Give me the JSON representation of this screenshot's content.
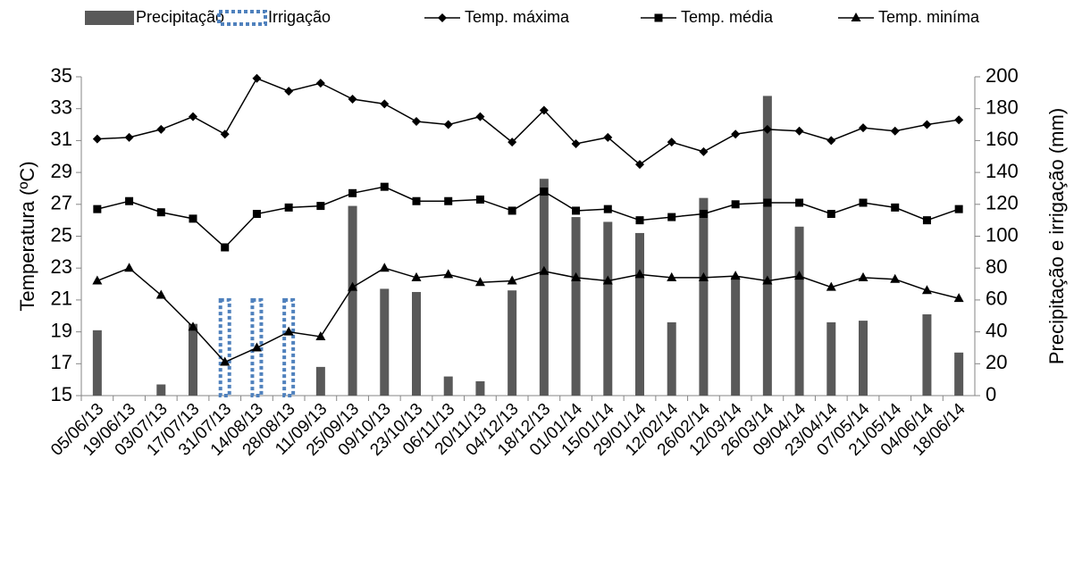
{
  "chart_data": {
    "type": "bar-line",
    "ylabel": "Temperatura (ºC)",
    "y2label": "Precipitação e irrigação (mm)",
    "categories": [
      "05/06/13",
      "19/06/13",
      "03/07/13",
      "17/07/13",
      "31/07/13",
      "14/08/13",
      "28/08/13",
      "11/09/13",
      "25/09/13",
      "09/10/13",
      "23/10/13",
      "06/11/13",
      "20/11/13",
      "04/12/13",
      "18/12/13",
      "01/01/14",
      "15/01/14",
      "29/01/14",
      "12/02/14",
      "26/02/14",
      "12/03/14",
      "26/03/14",
      "09/04/14",
      "23/04/14",
      "07/05/14",
      "21/05/14",
      "04/06/14",
      "18/06/14"
    ],
    "ylim": [
      15,
      35
    ],
    "yticks": [
      15,
      17,
      19,
      21,
      23,
      25,
      27,
      29,
      31,
      33,
      35
    ],
    "y2lim": [
      0,
      200
    ],
    "y2ticks": [
      0,
      20,
      40,
      60,
      80,
      100,
      120,
      140,
      160,
      180,
      200
    ],
    "series": [
      {
        "name": "Precipitação",
        "kind": "bar",
        "axis": "y2",
        "color": "#595959",
        "values": [
          41,
          0,
          7,
          45,
          0,
          0,
          0,
          18,
          119,
          67,
          65,
          12,
          9,
          66,
          136,
          112,
          109,
          102,
          46,
          124,
          75,
          188,
          106,
          46,
          47,
          0,
          51,
          27
        ]
      },
      {
        "name": "Irrigação",
        "kind": "bar",
        "axis": "y2",
        "color": "#4f81bd",
        "values": [
          null,
          null,
          null,
          null,
          60,
          60,
          60,
          null,
          null,
          null,
          null,
          null,
          null,
          null,
          null,
          null,
          null,
          null,
          null,
          null,
          null,
          null,
          null,
          null,
          null,
          null,
          null,
          null
        ]
      },
      {
        "name": "Temp. máxima",
        "kind": "line",
        "marker": "diamond",
        "color": "#000000",
        "values": [
          31.1,
          31.2,
          31.7,
          32.5,
          31.4,
          34.9,
          34.1,
          34.6,
          33.6,
          33.3,
          32.2,
          32.0,
          32.5,
          30.9,
          32.9,
          30.8,
          31.2,
          29.5,
          30.9,
          30.3,
          31.4,
          31.7,
          31.6,
          31.0,
          31.8,
          31.6,
          32.0,
          32.3
        ]
      },
      {
        "name": "Temp. média",
        "kind": "line",
        "marker": "square",
        "color": "#000000",
        "values": [
          26.7,
          27.2,
          26.5,
          26.1,
          24.3,
          26.4,
          26.8,
          26.9,
          27.7,
          28.1,
          27.2,
          27.2,
          27.3,
          26.6,
          27.8,
          26.6,
          26.7,
          26.0,
          26.2,
          26.4,
          27.0,
          27.1,
          27.1,
          26.4,
          27.1,
          26.8,
          26.0,
          26.7
        ]
      },
      {
        "name": "Temp. miníma",
        "kind": "line",
        "marker": "triangle",
        "color": "#000000",
        "values": [
          22.2,
          23.0,
          21.3,
          19.3,
          17.1,
          18.0,
          19.0,
          18.7,
          21.8,
          23.0,
          22.4,
          22.6,
          22.1,
          22.2,
          22.8,
          22.4,
          22.2,
          22.6,
          22.4,
          22.4,
          22.5,
          22.2,
          22.5,
          21.8,
          22.4,
          22.3,
          21.6,
          21.1
        ]
      }
    ]
  }
}
